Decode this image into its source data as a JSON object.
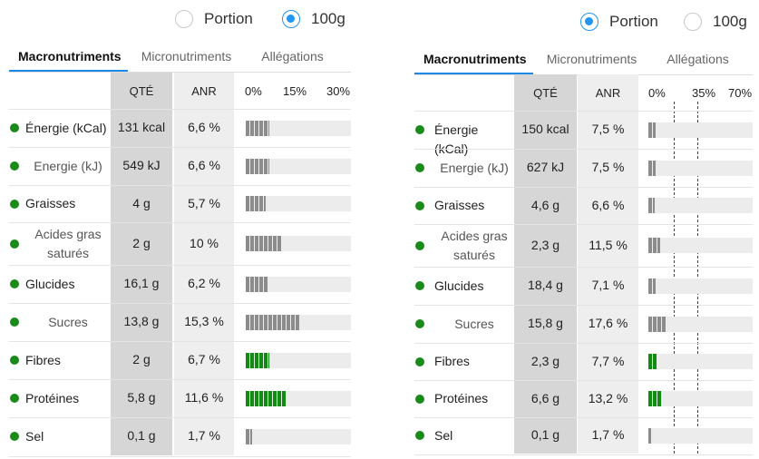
{
  "colors": {
    "accent": "#2196f3",
    "grey_bar": "#8c8c8c",
    "green_bar": "#138a13",
    "dot": "#1a8a1a"
  },
  "panels": [
    {
      "radio": {
        "options": [
          "Portion",
          "100g"
        ],
        "selected": 1
      },
      "tabs": [
        "Macronutriments",
        "Micronutriments",
        "Allégations"
      ],
      "active_tab": 0,
      "headers": {
        "qty": "QTÉ",
        "anr": "ANR"
      },
      "ticks": [
        "0%",
        "15%",
        "30%"
      ],
      "scale_max_pct": 30,
      "rows": [
        {
          "name": "Énergie (kCal)",
          "sub": false,
          "qty": "131 kcal",
          "anr": "6,6 %",
          "pct": 6.6,
          "color": "grey"
        },
        {
          "name": "Energie (kJ)",
          "sub": true,
          "qty": "549 kJ",
          "anr": "6,6 %",
          "pct": 6.6,
          "color": "grey"
        },
        {
          "name": "Graisses",
          "sub": false,
          "qty": "4 g",
          "anr": "5,7 %",
          "pct": 5.7,
          "color": "grey"
        },
        {
          "name": "Acides gras saturés",
          "sub": true,
          "qty": "2 g",
          "anr": "10 %",
          "pct": 10,
          "color": "grey"
        },
        {
          "name": "Glucides",
          "sub": false,
          "qty": "16,1 g",
          "anr": "6,2 %",
          "pct": 6.2,
          "color": "grey"
        },
        {
          "name": "Sucres",
          "sub": true,
          "qty": "13,8 g",
          "anr": "15,3 %",
          "pct": 15.3,
          "color": "grey"
        },
        {
          "name": "Fibres",
          "sub": false,
          "qty": "2 g",
          "anr": "6,7 %",
          "pct": 6.7,
          "color": "green"
        },
        {
          "name": "Protéines",
          "sub": false,
          "qty": "5,8 g",
          "anr": "11,6 %",
          "pct": 11.6,
          "color": "green"
        },
        {
          "name": "Sel",
          "sub": false,
          "qty": "0,1 g",
          "anr": "1,7 %",
          "pct": 1.7,
          "color": "grey"
        }
      ]
    },
    {
      "radio": {
        "options": [
          "Portion",
          "100g"
        ],
        "selected": 0
      },
      "tabs": [
        "Macronutriments",
        "Micronutriments",
        "Allégations"
      ],
      "active_tab": 0,
      "headers": {
        "qty": "QTÉ",
        "anr": "ANR"
      },
      "ticks": [
        "0%",
        "35%",
        "70%"
      ],
      "scale_max_pct": 70,
      "rows": [
        {
          "name": "Énergie (kCal)",
          "sub": false,
          "qty": "150 kcal",
          "anr": "7,5 %",
          "pct": 7.5,
          "color": "grey"
        },
        {
          "name": "Energie (kJ)",
          "sub": true,
          "qty": "627 kJ",
          "anr": "7,5 %",
          "pct": 7.5,
          "color": "grey"
        },
        {
          "name": "Graisses",
          "sub": false,
          "qty": "4,6 g",
          "anr": "6,6 %",
          "pct": 6.6,
          "color": "grey"
        },
        {
          "name": "Acides gras saturés",
          "sub": true,
          "qty": "2,3 g",
          "anr": "11,5 %",
          "pct": 11.5,
          "color": "grey"
        },
        {
          "name": "Glucides",
          "sub": false,
          "qty": "18,4 g",
          "anr": "7,1 %",
          "pct": 7.1,
          "color": "grey"
        },
        {
          "name": "Sucres",
          "sub": true,
          "qty": "15,8 g",
          "anr": "17,6 %",
          "pct": 17.6,
          "color": "grey"
        },
        {
          "name": "Fibres",
          "sub": false,
          "qty": "2,3 g",
          "anr": "7,7 %",
          "pct": 7.7,
          "color": "green"
        },
        {
          "name": "Protéines",
          "sub": false,
          "qty": "6,6 g",
          "anr": "13,2 %",
          "pct": 13.2,
          "color": "green"
        },
        {
          "name": "Sel",
          "sub": false,
          "qty": "0,1 g",
          "anr": "1,7 %",
          "pct": 1.7,
          "color": "grey"
        }
      ]
    }
  ]
}
